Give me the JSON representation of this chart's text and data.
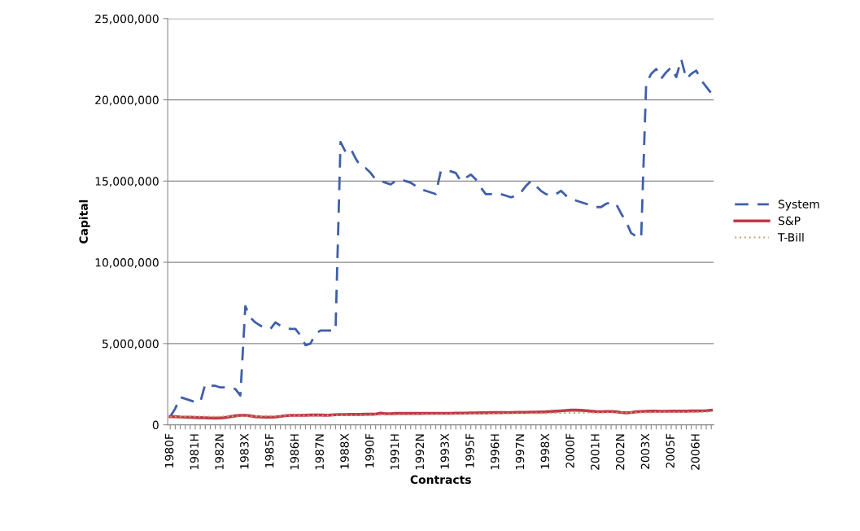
{
  "chart_data": {
    "type": "line",
    "xlabel": "Contracts",
    "ylabel": "Capital",
    "categories": [
      "1980F",
      null,
      null,
      null,
      null,
      "1981H",
      null,
      null,
      null,
      null,
      "1982N",
      null,
      null,
      null,
      null,
      "1983X",
      null,
      null,
      null,
      null,
      "1985F",
      null,
      null,
      null,
      null,
      "1986H",
      null,
      null,
      null,
      null,
      "1987N",
      null,
      null,
      null,
      null,
      "1988X",
      null,
      null,
      null,
      null,
      "1990F",
      null,
      null,
      null,
      null,
      "1991H",
      null,
      null,
      null,
      null,
      "1992N",
      null,
      null,
      null,
      null,
      "1993X",
      null,
      null,
      null,
      null,
      "1995F",
      null,
      null,
      null,
      null,
      "1996H",
      null,
      null,
      null,
      null,
      "1997N",
      null,
      null,
      null,
      null,
      "1998X",
      null,
      null,
      null,
      null,
      "2000F",
      null,
      null,
      null,
      null,
      "2001H",
      null,
      null,
      null,
      null,
      "2002N",
      null,
      null,
      null,
      null,
      "2003X",
      null,
      null,
      null,
      null,
      "2005F",
      null,
      null,
      null,
      null,
      "2006H",
      null,
      null,
      null
    ],
    "series": [
      {
        "name": "System",
        "color": "#3f5fa8",
        "line_style": "dashed",
        "values": [
          500000,
          1000000,
          1700000,
          1600000,
          1500000,
          1400000,
          1400000,
          2500000,
          2400000,
          2400000,
          2300000,
          2300000,
          2300000,
          2200000,
          1800000,
          7300000,
          6600000,
          6300000,
          6100000,
          6000000,
          5900000,
          6300000,
          6100000,
          6000000,
          5900000,
          5900000,
          5500000,
          4900000,
          5000000,
          5600000,
          5800000,
          5800000,
          5800000,
          5800000,
          17400000,
          16800000,
          17000000,
          16400000,
          15900000,
          15800000,
          15500000,
          15100000,
          15000000,
          14900000,
          14800000,
          15000000,
          15100000,
          15000000,
          14900000,
          14700000,
          14500000,
          14400000,
          14300000,
          14200000,
          15600000,
          15600000,
          15600000,
          15500000,
          15000000,
          15200000,
          15400000,
          15100000,
          14600000,
          14200000,
          14200000,
          14200000,
          14200000,
          14100000,
          14000000,
          14100000,
          14300000,
          14700000,
          15000000,
          14700000,
          14400000,
          14200000,
          14100000,
          14200000,
          14400000,
          14100000,
          13900000,
          13800000,
          13700000,
          13600000,
          13500000,
          13400000,
          13400000,
          13600000,
          13700000,
          13600000,
          13000000,
          12500000,
          11800000,
          11600000,
          11500000,
          21000000,
          21600000,
          21900000,
          21300000,
          21700000,
          22000000,
          21400000,
          22500000,
          21300000,
          21600000,
          21800000,
          21200000,
          20800000,
          20400000
        ]
      },
      {
        "name": "S&P",
        "color": "#c0394b",
        "line_style": "solid",
        "values": [
          500000,
          500000,
          480000,
          470000,
          460000,
          450000,
          440000,
          430000,
          420000,
          410000,
          420000,
          450000,
          500000,
          550000,
          580000,
          580000,
          550000,
          500000,
          480000,
          470000,
          470000,
          480000,
          520000,
          560000,
          580000,
          580000,
          580000,
          590000,
          600000,
          600000,
          600000,
          590000,
          600000,
          620000,
          630000,
          630000,
          640000,
          640000,
          640000,
          650000,
          650000,
          660000,
          720000,
          680000,
          680000,
          700000,
          700000,
          700000,
          700000,
          700000,
          700000,
          710000,
          710000,
          710000,
          710000,
          710000,
          710000,
          720000,
          720000,
          720000,
          730000,
          730000,
          740000,
          740000,
          750000,
          750000,
          750000,
          760000,
          760000,
          770000,
          770000,
          770000,
          780000,
          780000,
          790000,
          800000,
          820000,
          840000,
          860000,
          880000,
          900000,
          900000,
          890000,
          870000,
          840000,
          820000,
          810000,
          820000,
          820000,
          800000,
          760000,
          740000,
          760000,
          800000,
          820000,
          830000,
          840000,
          840000,
          830000,
          830000,
          840000,
          840000,
          840000,
          840000,
          850000,
          850000,
          860000,
          870000,
          900000
        ]
      },
      {
        "name": "T-Bill",
        "color": "#c8a060",
        "line_style": "dotted",
        "values": [
          500000,
          500000,
          500000,
          500000,
          500000,
          500000,
          510000,
          510000,
          510000,
          510000,
          510000,
          520000,
          520000,
          520000,
          520000,
          530000,
          530000,
          530000,
          530000,
          540000,
          540000,
          540000,
          550000,
          550000,
          550000,
          560000,
          560000,
          560000,
          570000,
          570000,
          570000,
          580000,
          580000,
          580000,
          590000,
          590000,
          590000,
          600000,
          600000,
          600000,
          610000,
          610000,
          610000,
          620000,
          620000,
          620000,
          630000,
          630000,
          630000,
          640000,
          640000,
          640000,
          650000,
          650000,
          650000,
          650000,
          660000,
          660000,
          660000,
          670000,
          670000,
          670000,
          670000,
          680000,
          680000,
          680000,
          690000,
          690000,
          690000,
          700000,
          700000,
          700000,
          700000,
          710000,
          710000,
          710000,
          720000,
          720000,
          720000,
          730000,
          730000,
          730000,
          740000,
          740000,
          740000,
          740000,
          750000,
          750000,
          750000,
          750000,
          750000,
          750000,
          760000,
          760000,
          760000,
          760000,
          760000,
          770000,
          770000,
          770000,
          770000,
          770000,
          780000,
          780000,
          780000,
          780000,
          790000,
          790000,
          790000
        ]
      }
    ],
    "ylim": [
      0,
      25000000
    ],
    "yticks": [
      0,
      {
        "value": 5000000,
        "label": "5,000,000"
      },
      {
        "value": 10000000,
        "label": "10,000,000"
      },
      {
        "value": 15000000,
        "label": "15,000,000"
      },
      {
        "value": 20000000,
        "label": "20,000,000"
      },
      {
        "value": 25000000,
        "label": "25,000,000"
      }
    ],
    "grid": "y",
    "legend": "right",
    "marker": "none"
  }
}
